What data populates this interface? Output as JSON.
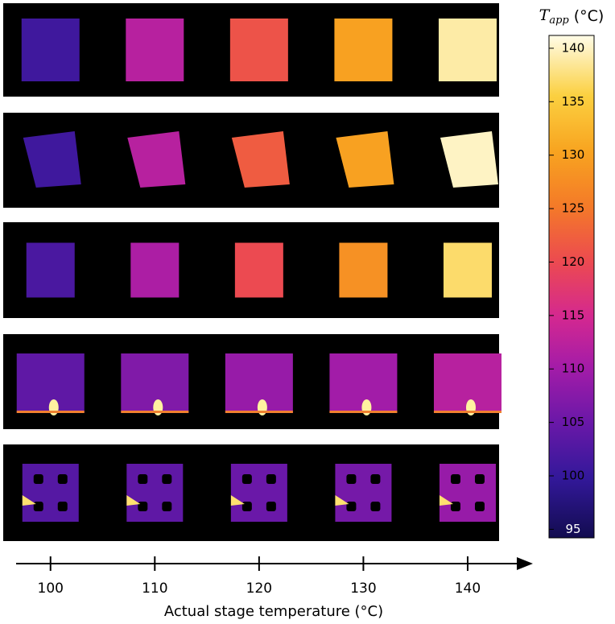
{
  "chart_data": {
    "type": "thermal-grid",
    "x_label": "Actual stage temperature (°C)",
    "xlim": [
      96.7,
      146.1
    ],
    "xticks": [
      100,
      110,
      120,
      130,
      140
    ],
    "colorbar": {
      "symbol": "T",
      "subscript": "app",
      "unit": "(°C)",
      "clim": [
        94.2,
        141.2
      ],
      "ticks": [
        95,
        100,
        105,
        110,
        115,
        120,
        125,
        130,
        135,
        140
      ]
    },
    "rows": [
      {
        "shape": "square",
        "values": [
          101,
          112,
          121,
          130,
          139
        ]
      },
      {
        "shape": "skewed",
        "values": [
          101,
          112,
          122,
          130,
          140
        ]
      },
      {
        "shape": "small",
        "values": [
          102,
          111,
          120,
          128,
          137
        ]
      },
      {
        "shape": "hotspot",
        "values": [
          104,
          107,
          109,
          110,
          112
        ]
      },
      {
        "shape": "perforated",
        "values": [
          103,
          104,
          105,
          106,
          109
        ]
      }
    ]
  }
}
